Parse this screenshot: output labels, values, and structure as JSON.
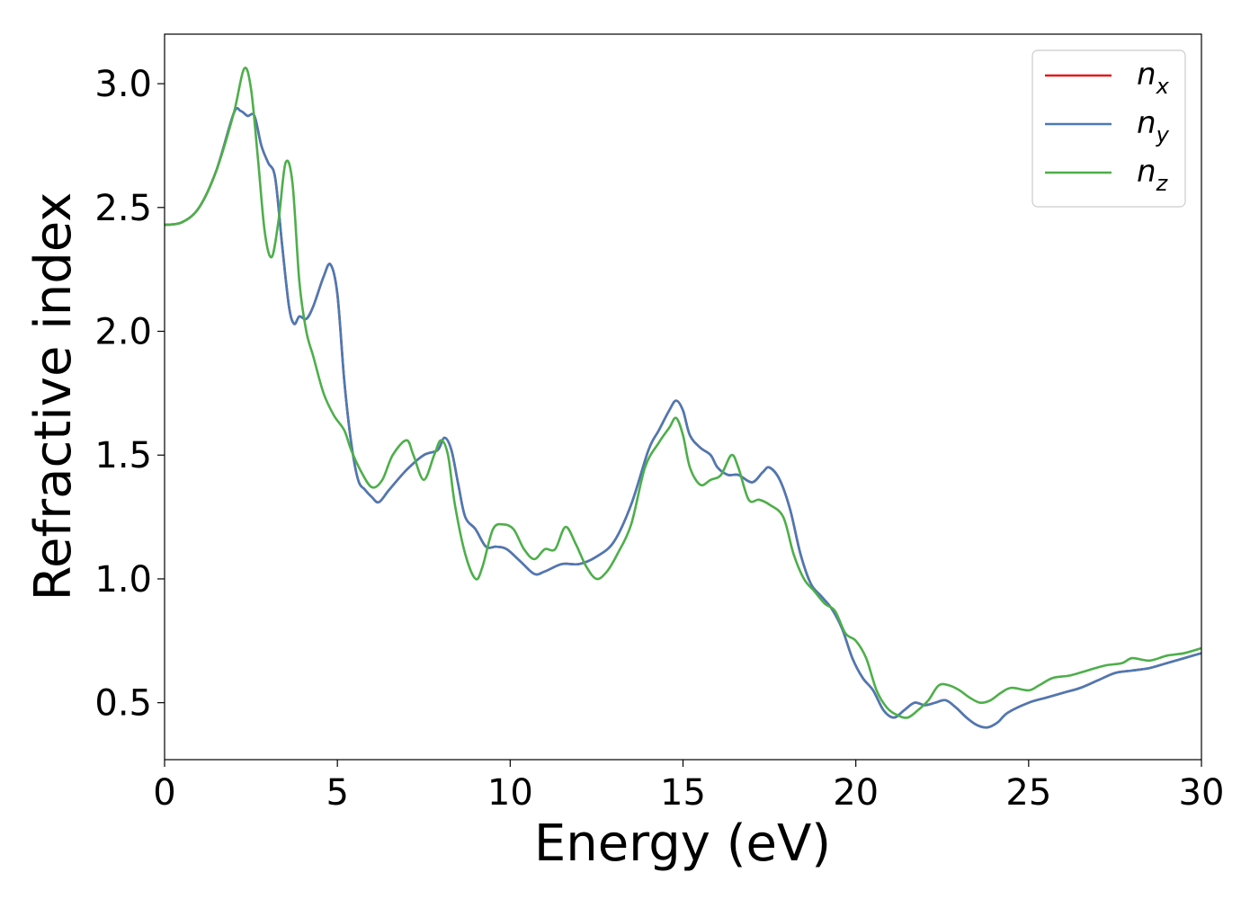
{
  "chart_data": {
    "type": "line",
    "title": "",
    "xlabel": "Energy (eV)",
    "ylabel": "Refractive index",
    "xlim": [
      0,
      30
    ],
    "ylim": [
      0.27,
      3.2
    ],
    "xticks": [
      0,
      5,
      10,
      15,
      20,
      25,
      30
    ],
    "xtick_labels": [
      "0",
      "5",
      "10",
      "15",
      "20",
      "25",
      "30"
    ],
    "yticks": [
      0.5,
      1.0,
      1.5,
      2.0,
      2.5,
      3.0
    ],
    "ytick_labels": [
      "0.5",
      "1.0",
      "1.5",
      "2.0",
      "2.5",
      "3.0"
    ],
    "grid": false,
    "legend_position": "top-right",
    "series": [
      {
        "name_base": "n",
        "name_sub": "x",
        "color": "#e41a1c",
        "points": [
          [
            0,
            2.43
          ],
          [
            0.5,
            2.44
          ],
          [
            1,
            2.5
          ],
          [
            1.5,
            2.65
          ],
          [
            2.0,
            2.88
          ],
          [
            2.2,
            2.89
          ],
          [
            2.4,
            2.87
          ],
          [
            2.6,
            2.87
          ],
          [
            2.8,
            2.75
          ],
          [
            3.0,
            2.68
          ],
          [
            3.2,
            2.62
          ],
          [
            3.4,
            2.35
          ],
          [
            3.6,
            2.1
          ],
          [
            3.75,
            2.03
          ],
          [
            3.9,
            2.06
          ],
          [
            4.1,
            2.05
          ],
          [
            4.3,
            2.1
          ],
          [
            4.6,
            2.22
          ],
          [
            4.8,
            2.27
          ],
          [
            5.0,
            2.15
          ],
          [
            5.2,
            1.8
          ],
          [
            5.4,
            1.55
          ],
          [
            5.6,
            1.4
          ],
          [
            5.8,
            1.36
          ],
          [
            6.0,
            1.33
          ],
          [
            6.2,
            1.31
          ],
          [
            6.5,
            1.36
          ],
          [
            7.0,
            1.44
          ],
          [
            7.5,
            1.5
          ],
          [
            7.9,
            1.52
          ],
          [
            8.1,
            1.57
          ],
          [
            8.3,
            1.52
          ],
          [
            8.5,
            1.38
          ],
          [
            8.7,
            1.25
          ],
          [
            9.0,
            1.2
          ],
          [
            9.3,
            1.13
          ],
          [
            9.6,
            1.13
          ],
          [
            9.9,
            1.12
          ],
          [
            10.3,
            1.07
          ],
          [
            10.7,
            1.02
          ],
          [
            11.0,
            1.03
          ],
          [
            11.5,
            1.06
          ],
          [
            12.0,
            1.06
          ],
          [
            12.5,
            1.09
          ],
          [
            13.0,
            1.15
          ],
          [
            13.5,
            1.3
          ],
          [
            14.0,
            1.52
          ],
          [
            14.3,
            1.6
          ],
          [
            14.6,
            1.68
          ],
          [
            14.8,
            1.72
          ],
          [
            15.0,
            1.68
          ],
          [
            15.2,
            1.58
          ],
          [
            15.5,
            1.53
          ],
          [
            15.8,
            1.5
          ],
          [
            16.0,
            1.45
          ],
          [
            16.3,
            1.42
          ],
          [
            16.6,
            1.42
          ],
          [
            17.0,
            1.39
          ],
          [
            17.3,
            1.43
          ],
          [
            17.5,
            1.45
          ],
          [
            17.8,
            1.4
          ],
          [
            18.1,
            1.28
          ],
          [
            18.4,
            1.1
          ],
          [
            18.7,
            0.98
          ],
          [
            19.0,
            0.93
          ],
          [
            19.3,
            0.88
          ],
          [
            19.6,
            0.8
          ],
          [
            19.9,
            0.68
          ],
          [
            20.2,
            0.6
          ],
          [
            20.5,
            0.55
          ],
          [
            20.8,
            0.47
          ],
          [
            21.1,
            0.44
          ],
          [
            21.4,
            0.47
          ],
          [
            21.7,
            0.5
          ],
          [
            22.0,
            0.49
          ],
          [
            22.3,
            0.5
          ],
          [
            22.6,
            0.51
          ],
          [
            22.9,
            0.48
          ],
          [
            23.2,
            0.44
          ],
          [
            23.5,
            0.41
          ],
          [
            23.8,
            0.4
          ],
          [
            24.1,
            0.42
          ],
          [
            24.4,
            0.46
          ],
          [
            25.0,
            0.5
          ],
          [
            25.5,
            0.52
          ],
          [
            26.0,
            0.54
          ],
          [
            26.5,
            0.56
          ],
          [
            27.0,
            0.59
          ],
          [
            27.5,
            0.62
          ],
          [
            28.0,
            0.63
          ],
          [
            28.5,
            0.64
          ],
          [
            29.0,
            0.66
          ],
          [
            29.5,
            0.68
          ],
          [
            30.0,
            0.7
          ]
        ]
      },
      {
        "name_base": "n",
        "name_sub": "y",
        "color": "#4a7ab5",
        "points": [
          [
            0,
            2.43
          ],
          [
            0.5,
            2.44
          ],
          [
            1,
            2.5
          ],
          [
            1.5,
            2.65
          ],
          [
            2.0,
            2.88
          ],
          [
            2.2,
            2.89
          ],
          [
            2.4,
            2.87
          ],
          [
            2.6,
            2.87
          ],
          [
            2.8,
            2.75
          ],
          [
            3.0,
            2.68
          ],
          [
            3.2,
            2.62
          ],
          [
            3.4,
            2.35
          ],
          [
            3.6,
            2.1
          ],
          [
            3.75,
            2.03
          ],
          [
            3.9,
            2.06
          ],
          [
            4.1,
            2.05
          ],
          [
            4.3,
            2.1
          ],
          [
            4.6,
            2.22
          ],
          [
            4.8,
            2.27
          ],
          [
            5.0,
            2.15
          ],
          [
            5.2,
            1.8
          ],
          [
            5.4,
            1.55
          ],
          [
            5.6,
            1.4
          ],
          [
            5.8,
            1.36
          ],
          [
            6.0,
            1.33
          ],
          [
            6.2,
            1.31
          ],
          [
            6.5,
            1.36
          ],
          [
            7.0,
            1.44
          ],
          [
            7.5,
            1.5
          ],
          [
            7.9,
            1.52
          ],
          [
            8.1,
            1.57
          ],
          [
            8.3,
            1.52
          ],
          [
            8.5,
            1.38
          ],
          [
            8.7,
            1.25
          ],
          [
            9.0,
            1.2
          ],
          [
            9.3,
            1.13
          ],
          [
            9.6,
            1.13
          ],
          [
            9.9,
            1.12
          ],
          [
            10.3,
            1.07
          ],
          [
            10.7,
            1.02
          ],
          [
            11.0,
            1.03
          ],
          [
            11.5,
            1.06
          ],
          [
            12.0,
            1.06
          ],
          [
            12.5,
            1.09
          ],
          [
            13.0,
            1.15
          ],
          [
            13.5,
            1.3
          ],
          [
            14.0,
            1.52
          ],
          [
            14.3,
            1.6
          ],
          [
            14.6,
            1.68
          ],
          [
            14.8,
            1.72
          ],
          [
            15.0,
            1.68
          ],
          [
            15.2,
            1.58
          ],
          [
            15.5,
            1.53
          ],
          [
            15.8,
            1.5
          ],
          [
            16.0,
            1.45
          ],
          [
            16.3,
            1.42
          ],
          [
            16.6,
            1.42
          ],
          [
            17.0,
            1.39
          ],
          [
            17.3,
            1.43
          ],
          [
            17.5,
            1.45
          ],
          [
            17.8,
            1.4
          ],
          [
            18.1,
            1.28
          ],
          [
            18.4,
            1.1
          ],
          [
            18.7,
            0.98
          ],
          [
            19.0,
            0.93
          ],
          [
            19.3,
            0.88
          ],
          [
            19.6,
            0.8
          ],
          [
            19.9,
            0.68
          ],
          [
            20.2,
            0.6
          ],
          [
            20.5,
            0.55
          ],
          [
            20.8,
            0.47
          ],
          [
            21.1,
            0.44
          ],
          [
            21.4,
            0.47
          ],
          [
            21.7,
            0.5
          ],
          [
            22.0,
            0.49
          ],
          [
            22.3,
            0.5
          ],
          [
            22.6,
            0.51
          ],
          [
            22.9,
            0.48
          ],
          [
            23.2,
            0.44
          ],
          [
            23.5,
            0.41
          ],
          [
            23.8,
            0.4
          ],
          [
            24.1,
            0.42
          ],
          [
            24.4,
            0.46
          ],
          [
            25.0,
            0.5
          ],
          [
            25.5,
            0.52
          ],
          [
            26.0,
            0.54
          ],
          [
            26.5,
            0.56
          ],
          [
            27.0,
            0.59
          ],
          [
            27.5,
            0.62
          ],
          [
            28.0,
            0.63
          ],
          [
            28.5,
            0.64
          ],
          [
            29.0,
            0.66
          ],
          [
            29.5,
            0.68
          ],
          [
            30.0,
            0.7
          ]
        ]
      },
      {
        "name_base": "n",
        "name_sub": "z",
        "color": "#4daf4a",
        "points": [
          [
            0,
            2.43
          ],
          [
            0.5,
            2.44
          ],
          [
            1,
            2.5
          ],
          [
            1.5,
            2.65
          ],
          [
            2.0,
            2.88
          ],
          [
            2.3,
            3.06
          ],
          [
            2.5,
            2.98
          ],
          [
            2.7,
            2.7
          ],
          [
            2.9,
            2.4
          ],
          [
            3.1,
            2.3
          ],
          [
            3.3,
            2.45
          ],
          [
            3.5,
            2.68
          ],
          [
            3.7,
            2.6
          ],
          [
            3.9,
            2.2
          ],
          [
            4.1,
            2.0
          ],
          [
            4.3,
            1.9
          ],
          [
            4.6,
            1.75
          ],
          [
            4.9,
            1.66
          ],
          [
            5.2,
            1.6
          ],
          [
            5.4,
            1.52
          ],
          [
            5.7,
            1.43
          ],
          [
            6.0,
            1.37
          ],
          [
            6.3,
            1.4
          ],
          [
            6.6,
            1.5
          ],
          [
            7.0,
            1.56
          ],
          [
            7.2,
            1.5
          ],
          [
            7.5,
            1.4
          ],
          [
            7.8,
            1.5
          ],
          [
            8.0,
            1.56
          ],
          [
            8.2,
            1.5
          ],
          [
            8.4,
            1.3
          ],
          [
            8.7,
            1.1
          ],
          [
            9.0,
            1.0
          ],
          [
            9.2,
            1.05
          ],
          [
            9.5,
            1.2
          ],
          [
            9.8,
            1.22
          ],
          [
            10.1,
            1.2
          ],
          [
            10.4,
            1.12
          ],
          [
            10.7,
            1.08
          ],
          [
            11.0,
            1.12
          ],
          [
            11.3,
            1.12
          ],
          [
            11.6,
            1.21
          ],
          [
            11.9,
            1.14
          ],
          [
            12.2,
            1.05
          ],
          [
            12.5,
            1.0
          ],
          [
            12.8,
            1.03
          ],
          [
            13.1,
            1.1
          ],
          [
            13.5,
            1.22
          ],
          [
            13.9,
            1.45
          ],
          [
            14.3,
            1.55
          ],
          [
            14.6,
            1.61
          ],
          [
            14.8,
            1.65
          ],
          [
            15.0,
            1.58
          ],
          [
            15.2,
            1.45
          ],
          [
            15.5,
            1.38
          ],
          [
            15.8,
            1.4
          ],
          [
            16.1,
            1.42
          ],
          [
            16.4,
            1.5
          ],
          [
            16.6,
            1.45
          ],
          [
            16.9,
            1.32
          ],
          [
            17.2,
            1.32
          ],
          [
            17.5,
            1.3
          ],
          [
            17.9,
            1.25
          ],
          [
            18.2,
            1.1
          ],
          [
            18.5,
            1.0
          ],
          [
            18.8,
            0.95
          ],
          [
            19.1,
            0.9
          ],
          [
            19.4,
            0.87
          ],
          [
            19.7,
            0.78
          ],
          [
            20.0,
            0.75
          ],
          [
            20.3,
            0.68
          ],
          [
            20.6,
            0.55
          ],
          [
            20.9,
            0.48
          ],
          [
            21.2,
            0.45
          ],
          [
            21.5,
            0.44
          ],
          [
            21.8,
            0.47
          ],
          [
            22.1,
            0.51
          ],
          [
            22.4,
            0.57
          ],
          [
            22.7,
            0.57
          ],
          [
            23.0,
            0.55
          ],
          [
            23.3,
            0.52
          ],
          [
            23.6,
            0.5
          ],
          [
            23.9,
            0.51
          ],
          [
            24.2,
            0.54
          ],
          [
            24.5,
            0.56
          ],
          [
            25.0,
            0.55
          ],
          [
            25.3,
            0.57
          ],
          [
            25.7,
            0.6
          ],
          [
            26.2,
            0.61
          ],
          [
            26.7,
            0.63
          ],
          [
            27.2,
            0.65
          ],
          [
            27.7,
            0.66
          ],
          [
            28.0,
            0.68
          ],
          [
            28.5,
            0.67
          ],
          [
            29.0,
            0.69
          ],
          [
            29.5,
            0.7
          ],
          [
            30.0,
            0.72
          ]
        ]
      }
    ]
  }
}
